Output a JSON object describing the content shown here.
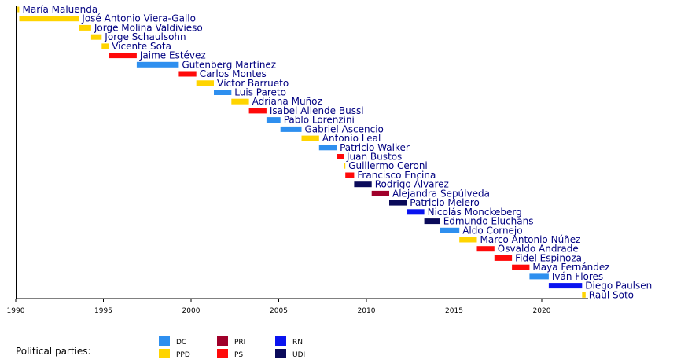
{
  "party_colors": {
    "DC": "#2e8fef",
    "PPD": "#ffd400",
    "PRI": "#a0002a",
    "PS": "#ff0a0a",
    "RN": "#0a14f0",
    "UDI": "#0a0a5a"
  },
  "legend": {
    "title": "Political parties:",
    "items": [
      {
        "party": "DC",
        "label": "DC"
      },
      {
        "party": "PPD",
        "label": "PPD"
      },
      {
        "party": "PRI",
        "label": "PRI"
      },
      {
        "party": "PS",
        "label": "PS"
      },
      {
        "party": "RN",
        "label": "RN"
      },
      {
        "party": "UDI",
        "label": "UDI"
      }
    ]
  },
  "chart_data": {
    "type": "bar",
    "orientation": "horizontal-timeline",
    "xlim": [
      1990,
      2022.6
    ],
    "xticks": [
      "1990",
      "1995",
      "2000",
      "2005",
      "2010",
      "2015",
      "2020"
    ],
    "grid": false,
    "legend_position": "bottom",
    "bars": [
      {
        "name": "María Maluenda",
        "party": "PPD",
        "start": 1990.1,
        "end": 1990.2
      },
      {
        "name": "José Antonio Viera-Gallo",
        "party": "PPD",
        "start": 1990.2,
        "end": 1993.6
      },
      {
        "name": "Jorge Molina Valdivieso",
        "party": "PPD",
        "start": 1993.6,
        "end": 1994.3
      },
      {
        "name": "Jorge Schaulsohn",
        "party": "PPD",
        "start": 1994.3,
        "end": 1994.9
      },
      {
        "name": "Vicente Sota",
        "party": "PPD",
        "start": 1994.9,
        "end": 1995.3
      },
      {
        "name": "Jaime Estévez",
        "party": "PS",
        "start": 1995.3,
        "end": 1996.9
      },
      {
        "name": "Gutenberg Martínez",
        "party": "DC",
        "start": 1996.9,
        "end": 1999.3
      },
      {
        "name": "Carlos Montes",
        "party": "PS",
        "start": 1999.3,
        "end": 2000.3
      },
      {
        "name": "Víctor Barrueto",
        "party": "PPD",
        "start": 2000.3,
        "end": 2001.3
      },
      {
        "name": "Luis Pareto",
        "party": "DC",
        "start": 2001.3,
        "end": 2002.3
      },
      {
        "name": "Adriana Muñoz",
        "party": "PPD",
        "start": 2002.3,
        "end": 2003.3
      },
      {
        "name": "Isabel Allende Bussi",
        "party": "PS",
        "start": 2003.3,
        "end": 2004.3
      },
      {
        "name": "Pablo Lorenzini",
        "party": "DC",
        "start": 2004.3,
        "end": 2005.1
      },
      {
        "name": "Gabriel Ascencio",
        "party": "DC",
        "start": 2005.1,
        "end": 2006.3
      },
      {
        "name": "Antonio Leal",
        "party": "PPD",
        "start": 2006.3,
        "end": 2007.3
      },
      {
        "name": "Patricio Walker",
        "party": "DC",
        "start": 2007.3,
        "end": 2008.3
      },
      {
        "name": "Juan Bustos",
        "party": "PS",
        "start": 2008.3,
        "end": 2008.7
      },
      {
        "name": "Guillermo Ceroni",
        "party": "PPD",
        "start": 2008.7,
        "end": 2008.8
      },
      {
        "name": "Francisco Encina",
        "party": "PS",
        "start": 2008.8,
        "end": 2009.3
      },
      {
        "name": "Rodrigo Álvarez",
        "party": "UDI",
        "start": 2009.3,
        "end": 2010.3
      },
      {
        "name": "Alejandra Sepúlveda",
        "party": "PRI",
        "start": 2010.3,
        "end": 2011.3
      },
      {
        "name": "Patricio Melero",
        "party": "UDI",
        "start": 2011.3,
        "end": 2012.3
      },
      {
        "name": "Nicolás Monckeberg",
        "party": "RN",
        "start": 2012.3,
        "end": 2013.3
      },
      {
        "name": "Edmundo Eluchans",
        "party": "UDI",
        "start": 2013.3,
        "end": 2014.2
      },
      {
        "name": "Aldo Cornejo",
        "party": "DC",
        "start": 2014.2,
        "end": 2015.3
      },
      {
        "name": "Marco Antonio Núñez",
        "party": "PPD",
        "start": 2015.3,
        "end": 2016.3
      },
      {
        "name": "Osvaldo Andrade",
        "party": "PS",
        "start": 2016.3,
        "end": 2017.3
      },
      {
        "name": "Fidel Espinoza",
        "party": "PS",
        "start": 2017.3,
        "end": 2018.3
      },
      {
        "name": "Maya Fernández",
        "party": "PS",
        "start": 2018.3,
        "end": 2019.3
      },
      {
        "name": "Iván Flores",
        "party": "DC",
        "start": 2019.3,
        "end": 2020.4
      },
      {
        "name": "Diego Paulsen",
        "party": "RN",
        "start": 2020.4,
        "end": 2022.3
      },
      {
        "name": "Raúl Soto",
        "party": "PPD",
        "start": 2022.3,
        "end": 2022.5
      }
    ]
  }
}
